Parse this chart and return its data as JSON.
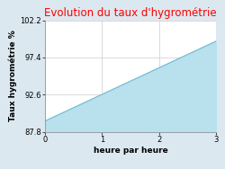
{
  "title": "Evolution du taux d'hygrométrie",
  "title_color": "#ff0000",
  "xlabel": "heure par heure",
  "ylabel": "Taux hygrométrie %",
  "xlim": [
    0,
    3
  ],
  "ylim": [
    87.8,
    102.2
  ],
  "yticks": [
    87.8,
    92.6,
    97.4,
    102.2
  ],
  "xticks": [
    0,
    1,
    2,
    3
  ],
  "x_data": [
    0,
    3
  ],
  "y_data": [
    89.2,
    99.5
  ],
  "fill_color": "#b8e0ed",
  "line_color": "#6ab8d4",
  "bg_color": "#dce8f0",
  "axes_bg_color": "#ffffff",
  "grid_color": "#cccccc",
  "title_fontsize": 8.5,
  "label_fontsize": 6.5,
  "tick_fontsize": 6.0
}
